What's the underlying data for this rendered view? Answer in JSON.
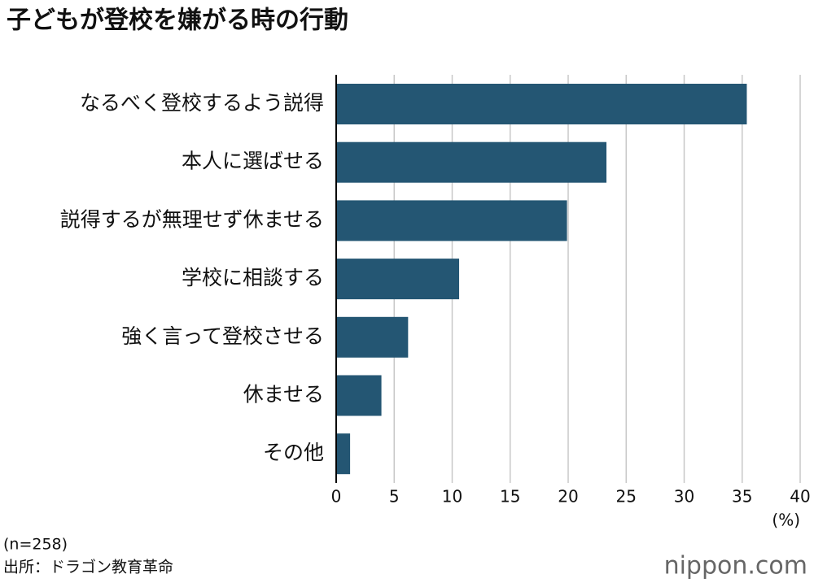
{
  "chart_data": {
    "type": "bar",
    "orientation": "horizontal",
    "title": "子どもが登校を嫌がる時の行動",
    "categories": [
      "なるべく登校するよう説得",
      "本人に選ばせる",
      "説得するが無理せず休ませる",
      "学校に相談する",
      "強く言って登校させる",
      "休ませる",
      "その他"
    ],
    "values": [
      35.4,
      23.3,
      19.9,
      10.6,
      6.2,
      3.9,
      1.2
    ],
    "color": "#245673",
    "xlim": [
      0,
      40
    ],
    "xticks": [
      0,
      5,
      10,
      15,
      20,
      25,
      30,
      35,
      40
    ],
    "unit_label": "(%)",
    "grid": true,
    "note": "(n=258)",
    "source": "出所：ドラゴン教育革命",
    "brand": "nippon.com"
  }
}
